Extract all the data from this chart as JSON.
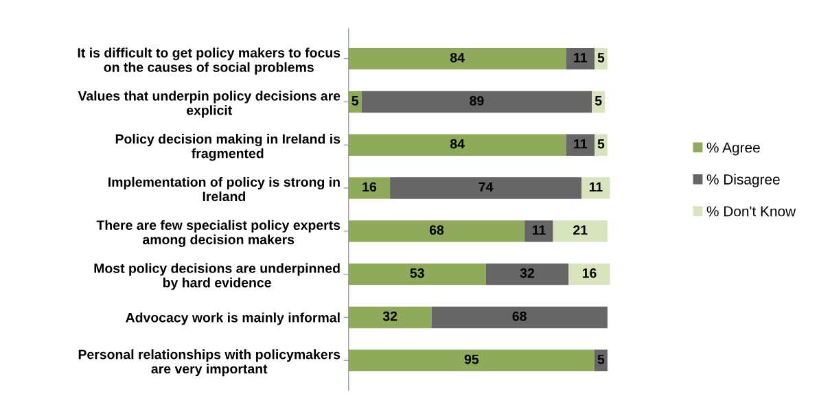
{
  "chart_data": {
    "type": "bar",
    "orientation": "horizontal",
    "stacked": true,
    "data_labels": true,
    "legend": "right",
    "grid": false,
    "categories": [
      "It is difficult to get policy makers to focus\non the causes of social problems",
      "Values that underpin policy decisions are\nexplicit",
      "Policy decision making in Ireland is\nfragmented",
      "Implementation of policy is strong in\nIreland",
      "There are few specialist policy experts\namong decision makers",
      "Most policy decisions are underpinned\nby hard evidence",
      "Advocacy work is mainly informal",
      "Personal relationships with policymakers\nare very important"
    ],
    "series": [
      {
        "name": "% Agree",
        "color": "#8faa5a",
        "values": [
          84,
          5,
          84,
          16,
          68,
          53,
          32,
          95
        ]
      },
      {
        "name": "% Disagree",
        "color": "#666666",
        "values": [
          11,
          89,
          11,
          74,
          11,
          32,
          68,
          5
        ]
      },
      {
        "name": "% Don't Know",
        "color": "#d7e4bd",
        "values": [
          5,
          5,
          5,
          11,
          21,
          16,
          null,
          null
        ]
      }
    ]
  }
}
